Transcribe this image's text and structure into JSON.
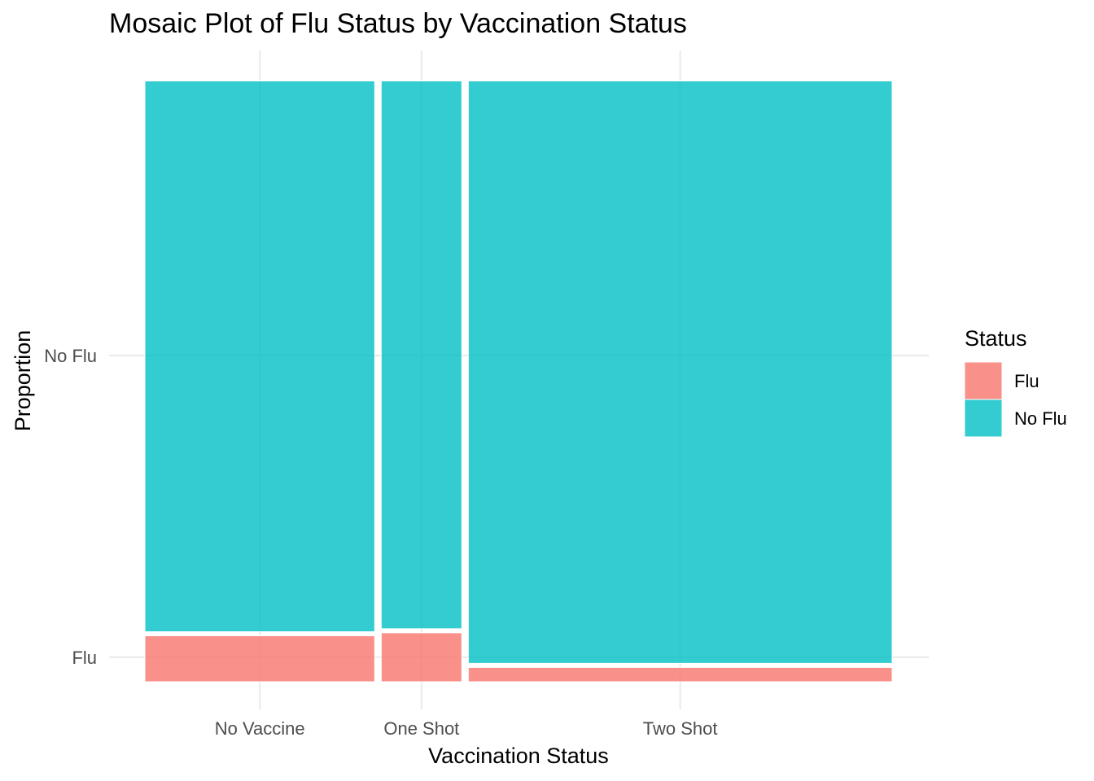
{
  "chart_data": {
    "type": "mosaic",
    "title": "Mosaic Plot of Flu Status by Vaccination Status",
    "xlabel": "Vaccination Status",
    "ylabel": "Proportion",
    "categories": [
      "No Vaccine",
      "One Shot",
      "Two Shot"
    ],
    "column_shares": [
      0.308,
      0.108,
      0.568
    ],
    "series": [
      {
        "name": "Flu",
        "color": "#F8766D",
        "values": [
          0.077,
          0.082,
          0.024
        ]
      },
      {
        "name": "No Flu",
        "color": "#00BFC4",
        "values": [
          0.923,
          0.918,
          0.976
        ]
      }
    ],
    "y_ticks": [
      "Flu",
      "No Flu"
    ],
    "ylim": [
      0,
      1
    ],
    "grid": true,
    "legend": {
      "title": "Status",
      "position": "right",
      "items": [
        "Flu",
        "No Flu"
      ]
    }
  }
}
